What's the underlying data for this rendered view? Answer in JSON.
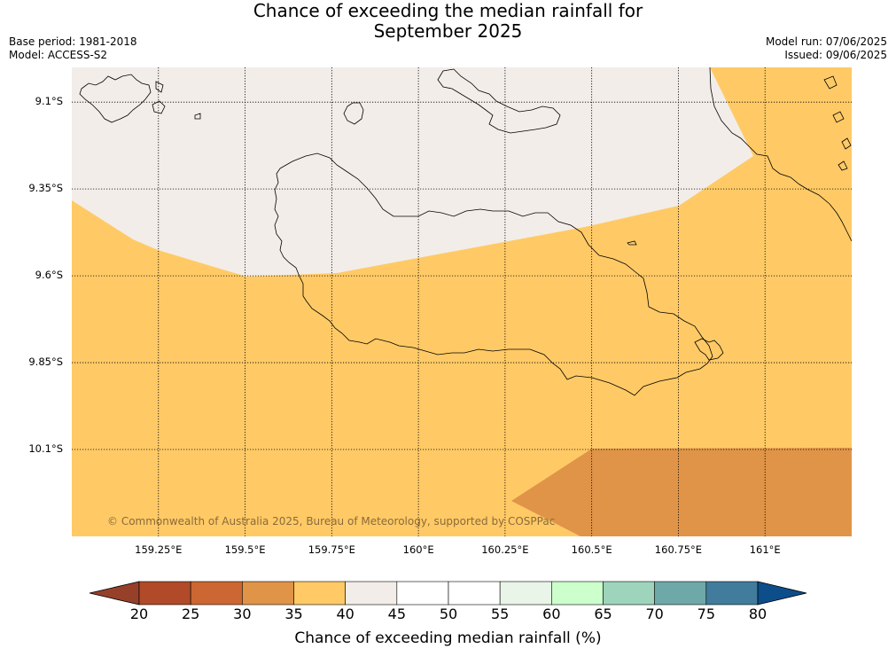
{
  "title": {
    "line1": "Chance of exceeding the median rainfall for",
    "line2": "September 2025"
  },
  "info": {
    "base_period": "Base period: 1981-2018",
    "model": "Model: ACCESS-S2",
    "model_run": "Model run: 07/06/2025",
    "issued": "Issued: 09/06/2025"
  },
  "map": {
    "copyright": "© Commonwealth of Australia 2025, Bureau of Meteorology, supported by COSPPac",
    "lon_range": [
      159.0,
      161.25
    ],
    "lat_range": [
      -10.35,
      -9.0
    ],
    "lon_ticks": [
      {
        "value": 159.25,
        "label": "159.25°E"
      },
      {
        "value": 159.5,
        "label": "159.5°E"
      },
      {
        "value": 159.75,
        "label": "159.75°E"
      },
      {
        "value": 160.0,
        "label": "160°E"
      },
      {
        "value": 160.25,
        "label": "160.25°E"
      },
      {
        "value": 160.5,
        "label": "160.5°E"
      },
      {
        "value": 160.75,
        "label": "160.75°E"
      },
      {
        "value": 161.0,
        "label": "161°E"
      }
    ],
    "lat_ticks": [
      {
        "value": -9.1,
        "label": "9.1°S"
      },
      {
        "value": -9.35,
        "label": "9.35°S"
      },
      {
        "value": -9.6,
        "label": "9.6°S"
      },
      {
        "value": -9.85,
        "label": "9.85°S"
      },
      {
        "value": -10.1,
        "label": "10.1°S"
      }
    ],
    "regions": [
      {
        "name": "chance 40-45%",
        "color": "#f2ede8"
      },
      {
        "name": "chance 35-40%",
        "color": "#ffca66"
      },
      {
        "name": "chance 30-35%",
        "color": "#e09448"
      }
    ]
  },
  "colorbar": {
    "title": "Chance of exceeding median rainfall (%)",
    "labels": [
      "20",
      "25",
      "30",
      "35",
      "40",
      "45",
      "50",
      "55",
      "60",
      "65",
      "70",
      "75",
      "80"
    ],
    "under_color": "#96402a",
    "over_color": "#0d4d8a",
    "colors": [
      "#b04a28",
      "#cc6632",
      "#e09448",
      "#ffca66",
      "#f2ede8",
      "#ffffff",
      "#ffffff",
      "#e8f5e8",
      "#ccffcc",
      "#9ed4bc",
      "#6fa8a8",
      "#417c9c"
    ]
  }
}
